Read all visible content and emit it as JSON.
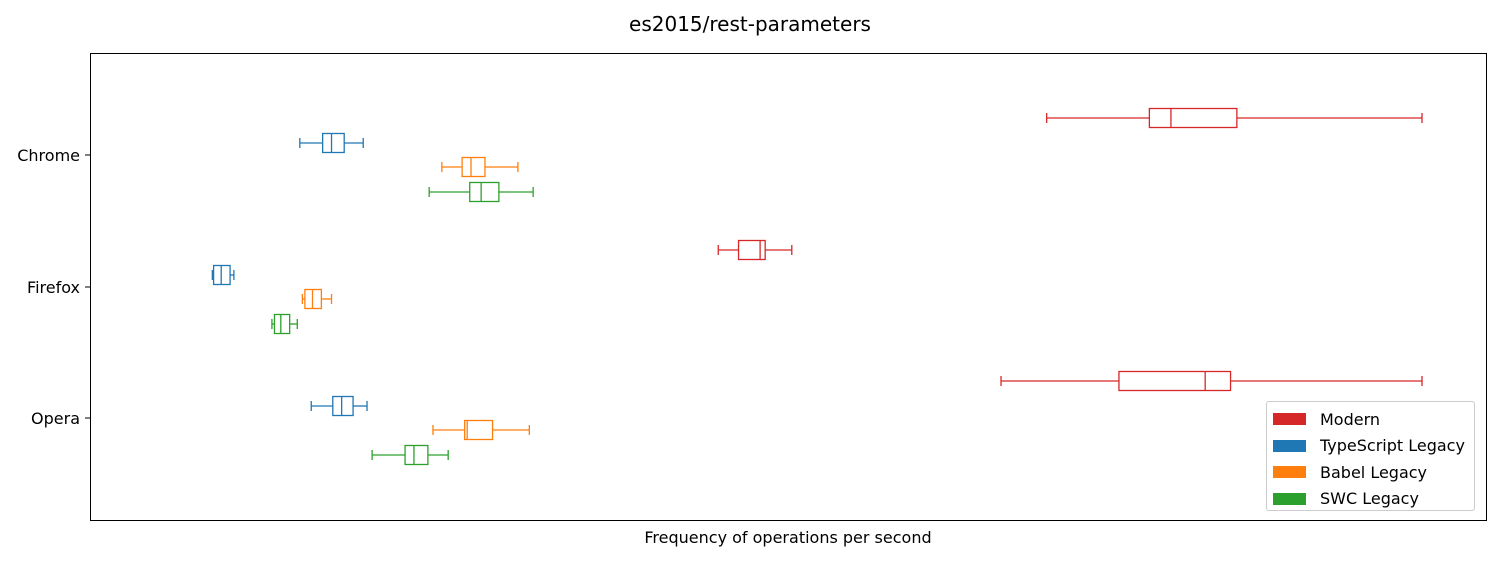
{
  "chart_data": {
    "type": "boxplot",
    "title": "es2015/rest-parameters",
    "xlabel": "Frequency of operations per second",
    "ylabel": "",
    "orientation": "horizontal",
    "x_ticks_shown": false,
    "xlim": [
      0,
      1000
    ],
    "categories": [
      "Chrome",
      "Firefox",
      "Opera"
    ],
    "legend_position": "lower right",
    "series": [
      {
        "name": "Modern",
        "color": "#d62728",
        "boxes": [
          {
            "min": 704,
            "q1": 785,
            "median": 802,
            "q3": 854,
            "max": 1000
          },
          {
            "min": 445,
            "q1": 461,
            "median": 478,
            "q3": 482,
            "max": 503
          },
          {
            "min": 668,
            "q1": 761,
            "median": 829,
            "q3": 849,
            "max": 1000
          }
        ]
      },
      {
        "name": "TypeScript Legacy",
        "color": "#1f77b4",
        "boxes": [
          {
            "min": 115,
            "q1": 133,
            "median": 140,
            "q3": 150,
            "max": 165
          },
          {
            "min": 46,
            "q1": 47,
            "median": 53,
            "q3": 60,
            "max": 63
          },
          {
            "min": 124,
            "q1": 141,
            "median": 148,
            "q3": 157,
            "max": 168
          }
        ]
      },
      {
        "name": "Babel Legacy",
        "color": "#ff7f0e",
        "boxes": [
          {
            "min": 227,
            "q1": 243,
            "median": 250,
            "q3": 261,
            "max": 287
          },
          {
            "min": 117,
            "q1": 119,
            "median": 125,
            "q3": 132,
            "max": 140
          },
          {
            "min": 220,
            "q1": 245,
            "median": 247,
            "q3": 267,
            "max": 296
          }
        ]
      },
      {
        "name": "SWC Legacy",
        "color": "#2ca02c",
        "boxes": [
          {
            "min": 217,
            "q1": 249,
            "median": 258,
            "q3": 272,
            "max": 299
          },
          {
            "min": 93,
            "q1": 95,
            "median": 100,
            "q3": 107,
            "max": 113
          },
          {
            "min": 172,
            "q1": 198,
            "median": 205,
            "q3": 216,
            "max": 232
          }
        ]
      }
    ]
  }
}
